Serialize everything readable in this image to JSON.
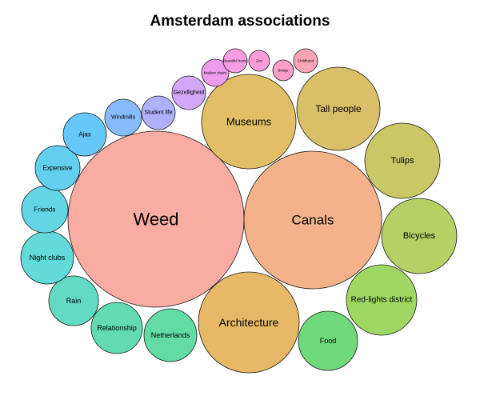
{
  "chart_data": {
    "type": "packed-bubble",
    "title": "Amsterdam associations",
    "bubbles": [
      {
        "label": "Weed",
        "value": 100,
        "color": "#f8aca2"
      },
      {
        "label": "Canals",
        "value": 80,
        "color": "#f3b28a"
      },
      {
        "label": "Architecture",
        "value": 36,
        "color": "#e8b869"
      },
      {
        "label": "Museums",
        "value": 33,
        "color": "#e2bf66"
      },
      {
        "label": "Tall people",
        "value": 30,
        "color": "#d9c068"
      },
      {
        "label": "Tulips",
        "value": 23,
        "color": "#c9c766"
      },
      {
        "label": "Bicycles",
        "value": 23,
        "color": "#b5d166"
      },
      {
        "label": "Red-lights district",
        "value": 19,
        "color": "#9ed862"
      },
      {
        "label": "Food",
        "value": 15,
        "color": "#6fd97a"
      },
      {
        "label": "Netherlands",
        "value": 12,
        "color": "#63dba4"
      },
      {
        "label": "Relationship",
        "value": 11,
        "color": "#63dbb2"
      },
      {
        "label": "Rain",
        "value": 10,
        "color": "#63dbc4"
      },
      {
        "label": "Night clubs",
        "value": 11,
        "color": "#63d9d9"
      },
      {
        "label": "Friends",
        "value": 8,
        "color": "#63d6e6"
      },
      {
        "label": "Expensive",
        "value": 8,
        "color": "#62cfef"
      },
      {
        "label": "Ajax",
        "value": 7,
        "color": "#66c7fa"
      },
      {
        "label": "Windmills",
        "value": 5,
        "color": "#86bcfb"
      },
      {
        "label": "Student life",
        "value": 4.5,
        "color": "#b1b0fb"
      },
      {
        "label": "Gezelligheid",
        "value": 4.5,
        "color": "#d3a7f8"
      },
      {
        "label": "Modern chairs",
        "value": 2,
        "color": "#ee9cee"
      },
      {
        "label": "Beautiful home",
        "value": 2,
        "color": "#f89ee2"
      },
      {
        "label": "Zoo",
        "value": 2,
        "color": "#fa9cd6"
      },
      {
        "label": "Bridge",
        "value": 2,
        "color": "#fc9dc8"
      },
      {
        "label": "Childhood",
        "value": 2,
        "color": "#fba5b6"
      }
    ]
  }
}
